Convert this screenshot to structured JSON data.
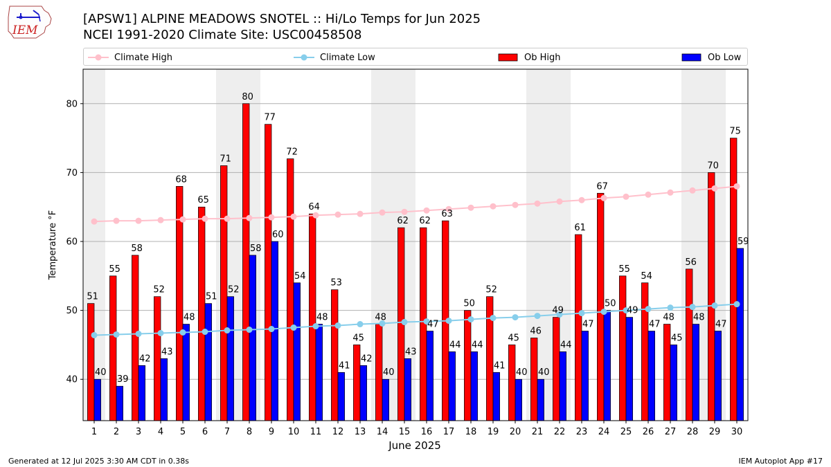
{
  "header": {
    "title_line1": "[APSW1] ALPINE MEADOWS SNOTEL :: Hi/Lo Temps for Jun 2025",
    "title_line2": "NCEI 1991-2020 Climate Site: USC00458508",
    "logo_text": "IEM"
  },
  "footer": {
    "generated": "Generated at 12 Jul 2025 3:30 AM CDT in 0.38s",
    "app": "IEM Autoplot App #17"
  },
  "colors": {
    "ob_high": "#ff0000",
    "ob_low": "#0000ff",
    "climate_high": "#ffc0cb",
    "climate_low": "#87ceeb",
    "weekend_band": "#eeeeee"
  },
  "chart_data": {
    "type": "bar",
    "xlabel": "June 2025",
    "ylabel": "Temperature °F",
    "ylim": [
      34,
      85
    ],
    "yticks": [
      40,
      50,
      60,
      70,
      80
    ],
    "grid": "y",
    "legend_position": "top",
    "categories": [
      "1",
      "2",
      "3",
      "4",
      "5",
      "6",
      "7",
      "8",
      "9",
      "10",
      "11",
      "12",
      "13",
      "14",
      "15",
      "16",
      "17",
      "18",
      "19",
      "20",
      "21",
      "22",
      "23",
      "24",
      "25",
      "26",
      "27",
      "28",
      "29",
      "30"
    ],
    "weekend_days": [
      1,
      7,
      8,
      14,
      15,
      21,
      22,
      28,
      29
    ],
    "series": [
      {
        "name": "Ob High",
        "kind": "bar",
        "values": [
          51,
          55,
          58,
          52,
          68,
          65,
          71,
          80,
          77,
          72,
          64,
          53,
          45,
          48,
          62,
          62,
          63,
          50,
          52,
          45,
          46,
          49,
          61,
          67,
          55,
          54,
          48,
          56,
          70,
          75
        ]
      },
      {
        "name": "Ob Low",
        "kind": "bar",
        "values": [
          40,
          39,
          42,
          43,
          48,
          51,
          52,
          58,
          60,
          54,
          48,
          41,
          42,
          40,
          43,
          47,
          44,
          44,
          41,
          40,
          40,
          44,
          47,
          50,
          49,
          47,
          45,
          48,
          47,
          59
        ]
      },
      {
        "name": "Climate High",
        "kind": "line",
        "values": [
          62.9,
          63.0,
          63.0,
          63.1,
          63.2,
          63.3,
          63.3,
          63.4,
          63.5,
          63.6,
          63.8,
          63.9,
          64.0,
          64.2,
          64.3,
          64.5,
          64.7,
          64.9,
          65.1,
          65.3,
          65.5,
          65.8,
          66.0,
          66.3,
          66.5,
          66.8,
          67.1,
          67.4,
          67.7,
          68.0
        ]
      },
      {
        "name": "Climate Low",
        "kind": "line",
        "values": [
          46.4,
          46.5,
          46.6,
          46.7,
          46.8,
          46.9,
          47.1,
          47.2,
          47.3,
          47.5,
          47.7,
          47.8,
          48.0,
          48.1,
          48.3,
          48.4,
          48.5,
          48.7,
          48.9,
          49.0,
          49.2,
          49.4,
          49.6,
          49.8,
          50.0,
          50.2,
          50.4,
          50.5,
          50.7,
          50.9
        ]
      }
    ]
  }
}
